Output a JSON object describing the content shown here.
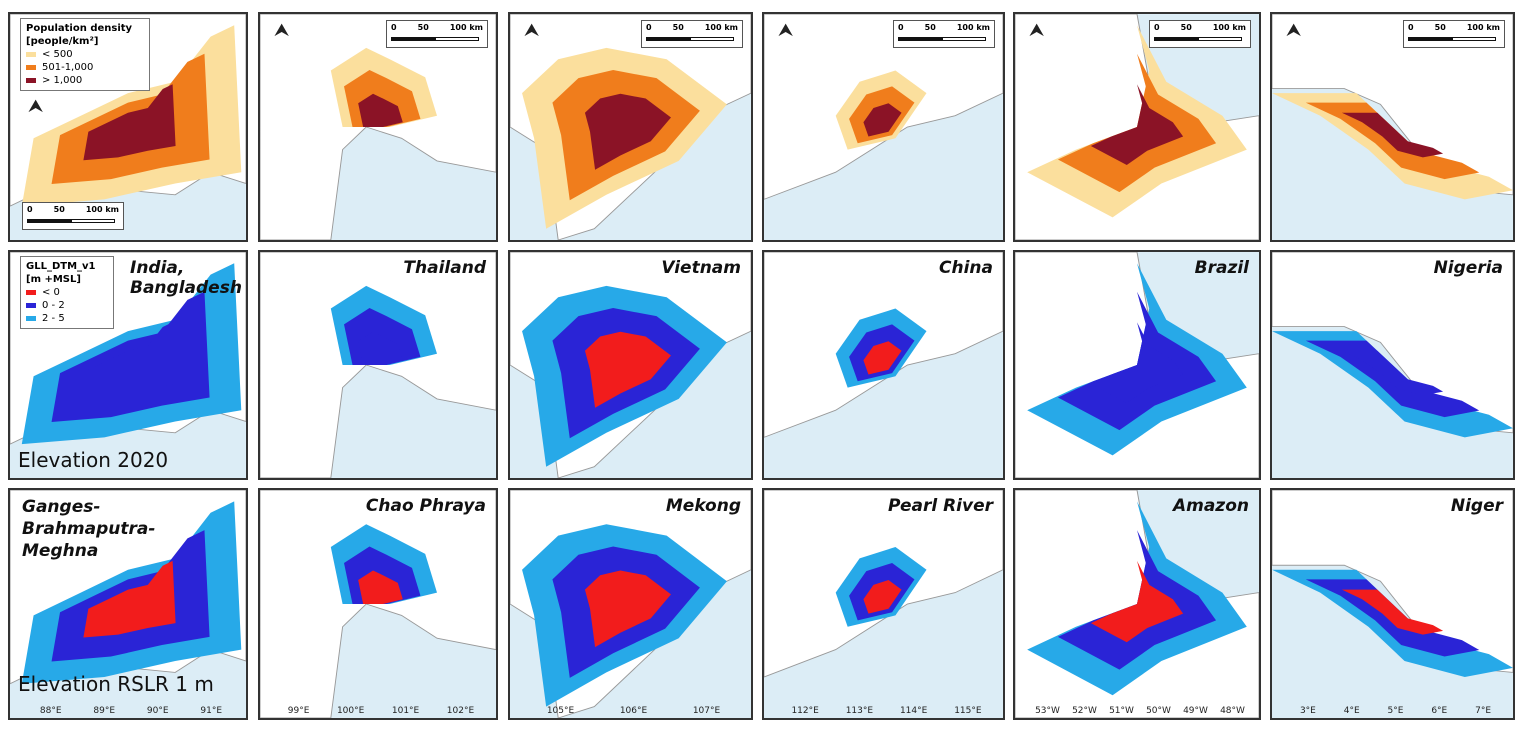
{
  "legend_pop": {
    "title": "Population density [people/km²]",
    "items": [
      {
        "label": "< 500",
        "color": "#fbdf9d"
      },
      {
        "label": "501-1,000",
        "color": "#f07d1c"
      },
      {
        "label": "> 1,000",
        "color": "#8b1326"
      }
    ]
  },
  "legend_elev": {
    "title": "GLL_DTM_v1 [m +MSL]",
    "items": [
      {
        "label": "< 0",
        "color": "#f21c1c"
      },
      {
        "label": "0 - 2",
        "color": "#2a24d6"
      },
      {
        "label": "2 - 5",
        "color": "#27a9e8"
      }
    ]
  },
  "scale_labels": [
    "0",
    "50",
    "100 km"
  ],
  "row_labels": {
    "elev2020": "Elevation 2020",
    "rslr": "Elevation RSLR 1 m"
  },
  "countries": [
    "India, Bangladesh",
    "Thailand",
    "Vietnam",
    "China",
    "Brazil",
    "Nigeria"
  ],
  "deltas": [
    "Ganges-Brahmaputra-Meghna",
    "Chao Phraya",
    "Mekong",
    "Pearl River",
    "Amazon",
    "Niger"
  ],
  "x_ticks": [
    [
      "88°E",
      "89°E",
      "90°E",
      "91°E"
    ],
    [
      "99°E",
      "100°E",
      "101°E",
      "102°E"
    ],
    [
      "105°E",
      "106°E",
      "107°E"
    ],
    [
      "112°E",
      "113°E",
      "114°E",
      "115°E"
    ],
    [
      "53°W",
      "52°W",
      "51°W",
      "50°W",
      "49°W",
      "48°W"
    ],
    [
      "3°E",
      "4°E",
      "5°E",
      "6°E",
      "7°E"
    ]
  ],
  "colors": {
    "sea": "#dcedf6",
    "land": "#ffffff",
    "border": "#333333"
  }
}
